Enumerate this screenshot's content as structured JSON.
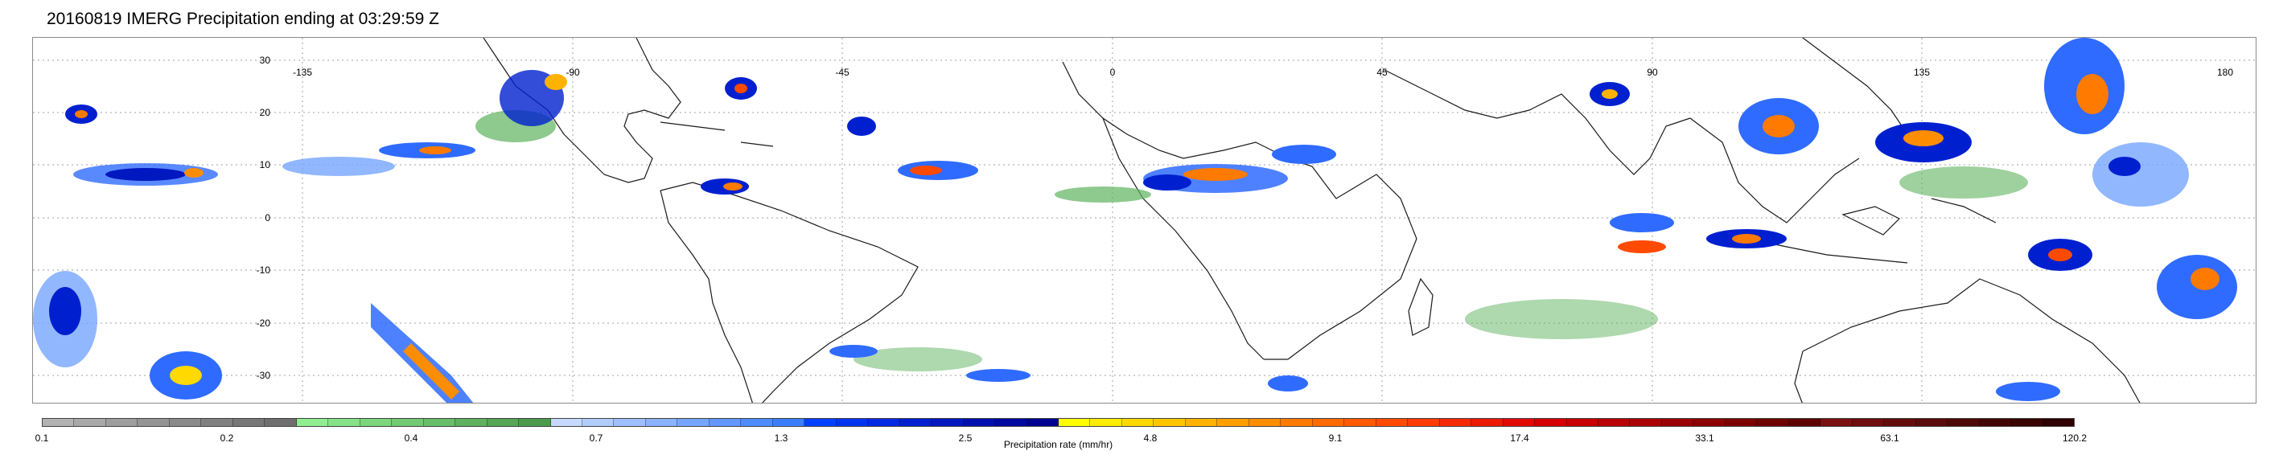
{
  "title": "20160819 IMERG Precipitation ending at 03:29:59 Z",
  "map": {
    "lat_labels": [
      "30",
      "20",
      "10",
      "0",
      "-10",
      "-20",
      "-30"
    ],
    "lon_labels": [
      "-135",
      "-90",
      "-45",
      "0",
      "45",
      "90",
      "135",
      "180"
    ],
    "gridlines": "dotted gray"
  },
  "colorbar": {
    "label": "Precipitation rate (mm/hr)",
    "tick_labels": [
      "0.1",
      "0.2",
      "0.4",
      "0.7",
      "1.3",
      "2.5",
      "4.8",
      "9.1",
      "17.4",
      "33.1",
      "63.1",
      "120.2"
    ],
    "colors": [
      "#b3b3b3",
      "#a8a8a8",
      "#9e9e9e",
      "#949494",
      "#8a8a8a",
      "#808080",
      "#777777",
      "#6e6e6e",
      "#90ee90",
      "#86e286",
      "#7cd67c",
      "#72ca72",
      "#68be68",
      "#5eb25e",
      "#55a655",
      "#4c9a4c",
      "#c6d9ff",
      "#b2ccff",
      "#9ebfff",
      "#8ab2ff",
      "#76a5ff",
      "#6298ff",
      "#4e8bff",
      "#3a7eff",
      "#0040ff",
      "#0035f0",
      "#002ae0",
      "#0020d0",
      "#0018c0",
      "#0010b0",
      "#0008a0",
      "#000090",
      "#ffff00",
      "#ffec00",
      "#ffd900",
      "#ffc600",
      "#ffb300",
      "#ffa000",
      "#ff8d00",
      "#ff7a00",
      "#ff6a00",
      "#ff5a00",
      "#ff4a00",
      "#ff3a00",
      "#f52a00",
      "#eb1a00",
      "#e10a00",
      "#d70000",
      "#c80000",
      "#b90000",
      "#aa0000",
      "#9b0000",
      "#8c0000",
      "#7d0000",
      "#6e0000",
      "#5f0000",
      "#7a1010",
      "#6f0e0e",
      "#640c0c",
      "#590a0a",
      "#4e0808",
      "#430606",
      "#380404",
      "#2d0202"
    ]
  }
}
